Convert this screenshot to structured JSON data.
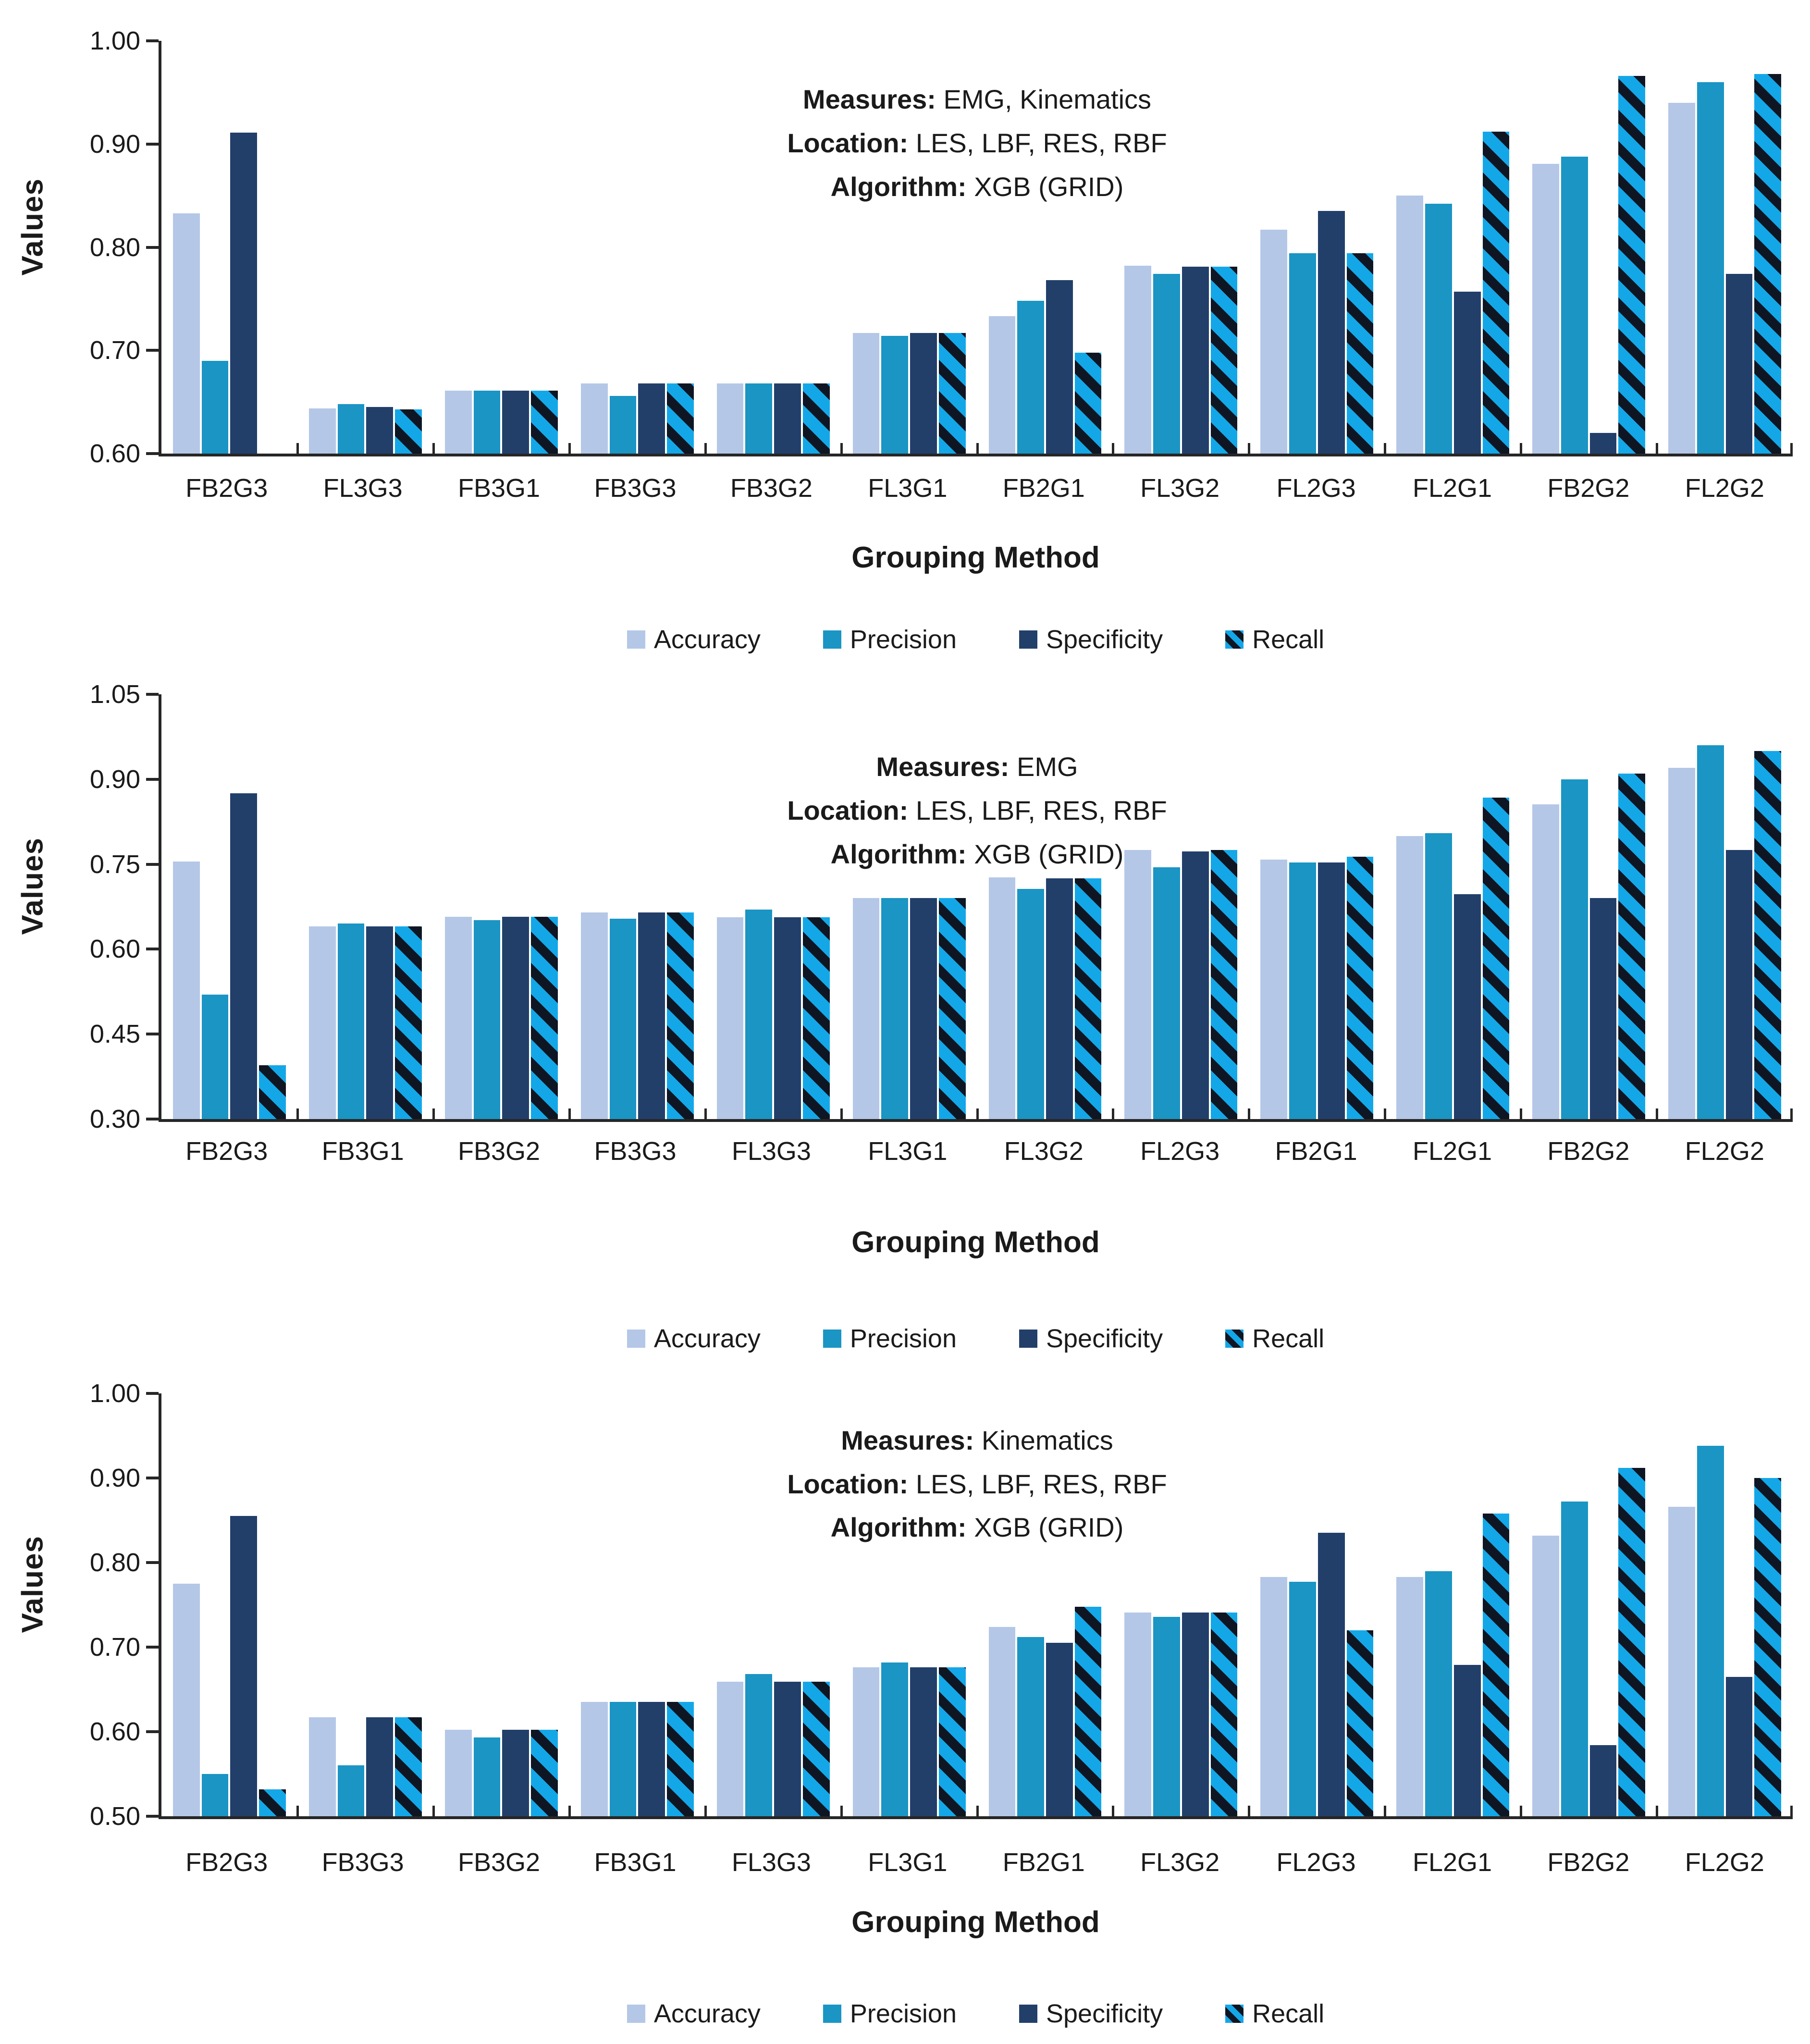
{
  "figure": {
    "ylabel": "Values",
    "xlabel": "Grouping Method",
    "legend": [
      "Accuracy",
      "Precision",
      "Specificity",
      "Recall"
    ],
    "colors": {
      "accuracy": "#b4c7e7",
      "precision": "#1a95c4",
      "specificity": "#223f6a",
      "recall_base": "#14a7e8",
      "recall_stripe": "#0e1623",
      "axis": "#262626",
      "text": "#1a1a1a"
    }
  },
  "chart_data": [
    {
      "type": "bar",
      "annotation": [
        {
          "label": "Measures:",
          "value": "EMG, Kinematics"
        },
        {
          "label": "Location:",
          "value": "LES, LBF, RES, RBF"
        },
        {
          "label": "Algorithm:",
          "value": "XGB (GRID)"
        }
      ],
      "ylabel": "Values",
      "xlabel": "Grouping Method",
      "grid": false,
      "legend_position": "bottom",
      "ylim": [
        0.6,
        1.0
      ],
      "yticks": [
        0.6,
        0.7,
        0.8,
        0.9,
        1.0
      ],
      "categories": [
        "FB2G3",
        "FL3G3",
        "FB3G1",
        "FB3G3",
        "FB3G2",
        "FL3G1",
        "FB2G1",
        "FL3G2",
        "FL2G3",
        "FL2G1",
        "FB2G2",
        "FL2G2"
      ],
      "series": [
        {
          "name": "Accuracy",
          "values": [
            0.833,
            0.644,
            0.661,
            0.668,
            0.668,
            0.717,
            0.733,
            0.782,
            0.817,
            0.85,
            0.881,
            0.94
          ]
        },
        {
          "name": "Precision",
          "values": [
            0.69,
            0.648,
            0.661,
            0.656,
            0.668,
            0.714,
            0.748,
            0.774,
            0.794,
            0.842,
            0.888,
            0.96
          ]
        },
        {
          "name": "Specificity",
          "values": [
            0.911,
            0.645,
            0.661,
            0.668,
            0.668,
            0.717,
            0.768,
            0.781,
            0.835,
            0.757,
            0.62,
            0.774
          ]
        },
        {
          "name": "Recall",
          "values": [
            null,
            0.643,
            0.661,
            0.668,
            0.668,
            0.717,
            0.698,
            0.781,
            0.794,
            0.912,
            0.966,
            0.968
          ]
        }
      ]
    },
    {
      "type": "bar",
      "annotation": [
        {
          "label": "Measures:",
          "value": "EMG"
        },
        {
          "label": "Location:",
          "value": "LES, LBF, RES, RBF"
        },
        {
          "label": "Algorithm:",
          "value": "XGB (GRID)"
        }
      ],
      "ylabel": "Values",
      "xlabel": "Grouping Method",
      "grid": false,
      "legend_position": "bottom",
      "ylim": [
        0.3,
        1.05
      ],
      "yticks": [
        0.3,
        0.45,
        0.6,
        0.75,
        0.9,
        1.05
      ],
      "categories": [
        "FB2G3",
        "FB3G1",
        "FB3G2",
        "FB3G3",
        "FL3G3",
        "FL3G1",
        "FL3G2",
        "FL2G3",
        "FB2G1",
        "FL2G1",
        "FB2G2",
        "FL2G2"
      ],
      "series": [
        {
          "name": "Accuracy",
          "values": [
            0.755,
            0.64,
            0.657,
            0.665,
            0.656,
            0.69,
            0.727,
            0.775,
            0.758,
            0.8,
            0.856,
            0.92
          ]
        },
        {
          "name": "Precision",
          "values": [
            0.52,
            0.645,
            0.651,
            0.654,
            0.67,
            0.69,
            0.706,
            0.745,
            0.753,
            0.805,
            0.9,
            0.96
          ]
        },
        {
          "name": "Specificity",
          "values": [
            0.875,
            0.64,
            0.657,
            0.665,
            0.656,
            0.69,
            0.725,
            0.773,
            0.753,
            0.697,
            0.69,
            0.775
          ]
        },
        {
          "name": "Recall",
          "values": [
            0.395,
            0.64,
            0.657,
            0.665,
            0.656,
            0.69,
            0.725,
            0.775,
            0.763,
            0.868,
            0.91,
            0.95
          ]
        }
      ]
    },
    {
      "type": "bar",
      "annotation": [
        {
          "label": "Measures:",
          "value": "Kinematics"
        },
        {
          "label": "Location:",
          "value": "LES, LBF, RES, RBF"
        },
        {
          "label": "Algorithm:",
          "value": "XGB (GRID)"
        }
      ],
      "ylabel": "Values",
      "xlabel": "Grouping Method",
      "grid": false,
      "legend_position": "bottom",
      "ylim": [
        0.5,
        1.0
      ],
      "yticks": [
        0.5,
        0.6,
        0.7,
        0.8,
        0.9,
        1.0
      ],
      "categories": [
        "FB2G3",
        "FB3G3",
        "FB3G2",
        "FB3G1",
        "FL3G3",
        "FL3G1",
        "FB2G1",
        "FL3G2",
        "FL2G3",
        "FL2G1",
        "FB2G2",
        "FL2G2"
      ],
      "series": [
        {
          "name": "Accuracy",
          "values": [
            0.775,
            0.617,
            0.602,
            0.635,
            0.659,
            0.676,
            0.724,
            0.741,
            0.783,
            0.783,
            0.832,
            0.866
          ]
        },
        {
          "name": "Precision",
          "values": [
            0.55,
            0.56,
            0.593,
            0.635,
            0.668,
            0.682,
            0.712,
            0.736,
            0.777,
            0.79,
            0.872,
            0.938
          ]
        },
        {
          "name": "Specificity",
          "values": [
            0.855,
            0.617,
            0.602,
            0.635,
            0.659,
            0.676,
            0.705,
            0.741,
            0.835,
            0.679,
            0.584,
            0.665
          ]
        },
        {
          "name": "Recall",
          "values": [
            0.532,
            0.617,
            0.602,
            0.635,
            0.659,
            0.676,
            0.748,
            0.741,
            0.72,
            0.858,
            0.912,
            0.9
          ]
        }
      ]
    }
  ]
}
